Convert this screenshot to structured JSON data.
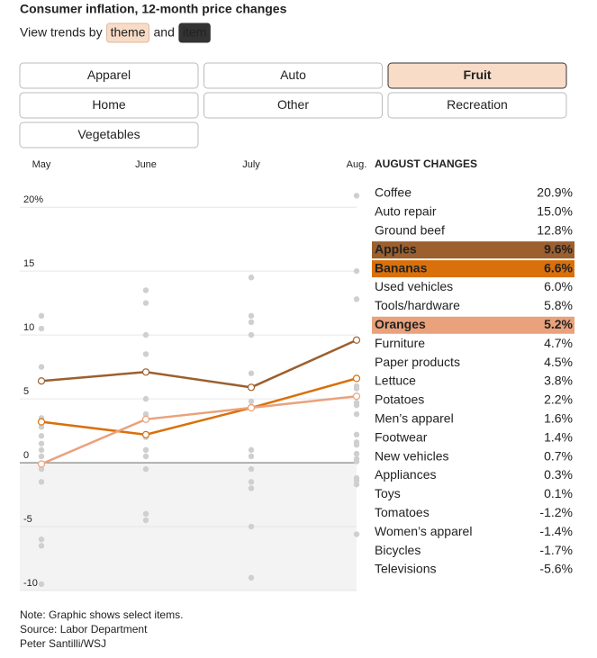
{
  "header": {
    "title": "Consumer inflation, 12-month price changes",
    "subtitle": [
      "View trends by",
      "theme",
      "and",
      "item"
    ]
  },
  "buttons": {
    "labels": [
      "Apparel",
      "Auto",
      "Fruit",
      "Home",
      "Other",
      "Recreation",
      "Vegetables"
    ],
    "selected": "Fruit"
  },
  "chart_data": {
    "type": "line",
    "categories": [
      "May",
      "June",
      "July",
      "Aug."
    ],
    "series": [
      {
        "name": "Apples",
        "color": "#9c5f2e",
        "values": [
          6.4,
          7.1,
          5.9,
          9.6
        ]
      },
      {
        "name": "Bananas",
        "color": "#d9700b",
        "values": [
          3.2,
          2.2,
          4.3,
          6.6
        ]
      },
      {
        "name": "Oranges",
        "color": "#e9a27c",
        "values": [
          -0.1,
          3.4,
          4.3,
          5.2
        ]
      }
    ],
    "other_points": [
      [
        11.5,
        10.5,
        7.5,
        3.5,
        2.8,
        2.1,
        1.5,
        1.0,
        0.5,
        -0.5,
        -1.5,
        -6.0,
        -6.5,
        -9.5
      ],
      [
        13.5,
        12.5,
        10.0,
        8.5,
        5.0,
        3.8,
        2.0,
        1.0,
        0.5,
        -0.5,
        -4.0,
        -4.5
      ],
      [
        14.5,
        11.5,
        11.0,
        10.0,
        7.0,
        4.8,
        1.0,
        0.5,
        -0.5,
        -1.5,
        -2.0,
        -5.0,
        -9.0
      ]
    ],
    "ylim": [
      -10,
      21
    ],
    "yticks": [
      {
        "value": 20,
        "label": "20%"
      },
      15,
      10,
      5,
      0,
      -5,
      -10
    ],
    "grid": true
  },
  "list": {
    "title": "AUGUST CHANGES",
    "items": [
      "Coffee",
      "Auto repair",
      "Ground beef",
      "Apples",
      "Bananas",
      "Used vehicles",
      "Tools/hardware",
      "Oranges",
      "Furniture",
      "Paper products",
      "Lettuce",
      "Potatoes",
      "Men’s apparel",
      "Footwear",
      "New vehicles",
      "Appliances",
      "Toys",
      "Tomatoes",
      "Women’s apparel",
      "Bicycles",
      "Televisions"
    ],
    "values": [
      20.9,
      15.0,
      12.8,
      9.6,
      6.6,
      6.0,
      5.8,
      5.2,
      4.7,
      4.5,
      3.8,
      2.2,
      1.6,
      1.4,
      0.7,
      0.3,
      0.1,
      -1.2,
      -1.4,
      -1.7,
      -5.6
    ],
    "value_labels": [
      "20.9%",
      "15.0%",
      "12.8%",
      "9.6%",
      "6.6%",
      "6.0%",
      "5.8%",
      "5.2%",
      "4.7%",
      "4.5%",
      "3.8%",
      "2.2%",
      "1.6%",
      "1.4%",
      "0.7%",
      "0.3%",
      "0.1%",
      "-1.2%",
      "-1.4%",
      "-1.7%",
      "-5.6%"
    ]
  },
  "notes": [
    "Note: Graphic shows select items.",
    "Source: Labor Department",
    "Peter Santilli/WSJ"
  ]
}
